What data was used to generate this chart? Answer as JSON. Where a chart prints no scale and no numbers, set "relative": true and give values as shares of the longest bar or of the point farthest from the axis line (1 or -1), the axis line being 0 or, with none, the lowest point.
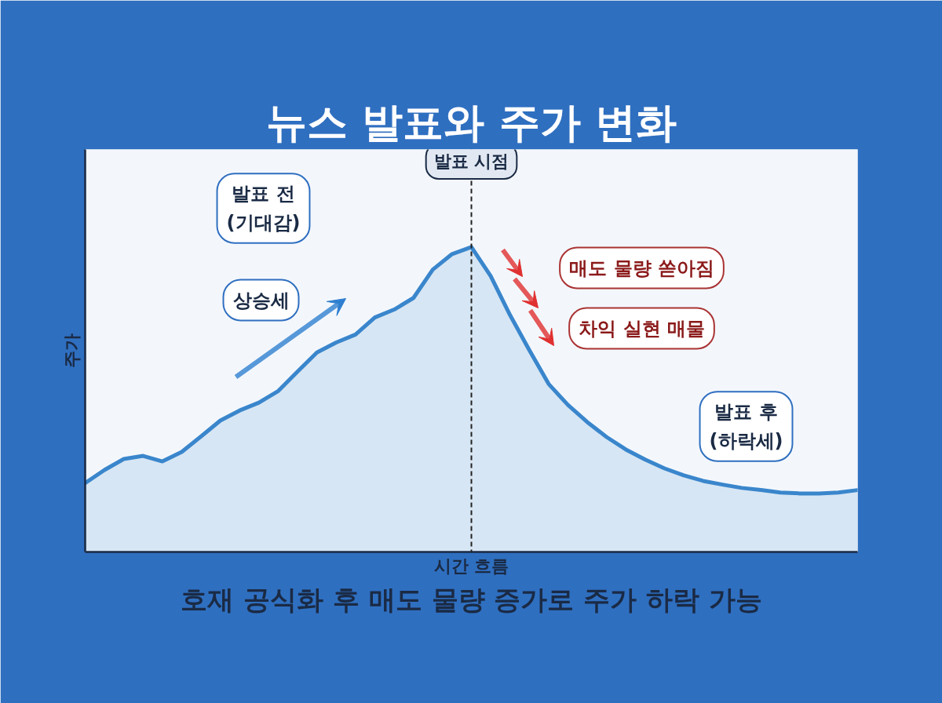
{
  "chart_data": {
    "type": "area",
    "title": "뉴스 발표와 주가 변화",
    "xlabel": "시간 흐름",
    "ylabel": "주가",
    "relative": true,
    "categories": [
      null,
      null,
      null,
      null,
      null,
      null,
      null,
      null,
      null,
      null,
      null,
      null,
      null,
      null,
      null,
      null,
      null,
      null,
      null,
      null,
      null,
      null,
      null,
      null,
      null,
      null,
      null,
      null,
      null,
      null,
      null,
      null,
      null,
      null,
      null,
      null,
      null,
      null,
      null,
      null,
      null
    ],
    "series": [
      {
        "color": "#3a86cc",
        "values": [
          0.226,
          0.269,
          0.305,
          0.315,
          0.297,
          0.328,
          0.379,
          0.431,
          0.464,
          0.49,
          0.528,
          0.592,
          0.654,
          0.687,
          0.713,
          0.769,
          0.795,
          0.833,
          0.926,
          0.977,
          1.0,
          0.905,
          0.777,
          0.662,
          0.551,
          0.482,
          0.426,
          0.377,
          0.336,
          0.303,
          0.274,
          0.251,
          0.233,
          0.221,
          0.21,
          0.203,
          0.195,
          0.192,
          0.192,
          0.195,
          0.203
        ]
      }
    ],
    "ref_lines": [
      {
        "axis": "x",
        "label": "발표 시점",
        "line_style": "dashed",
        "color": "#222222"
      }
    ],
    "annotations": [
      "발표 전\n(기대감)",
      "상승세",
      "매도 물량 쏟아짐",
      "차익 실현 매물",
      "발표 후\n(하락세)",
      "호재 공식화 후 매도 물량 증가로 주가 하락 가능"
    ]
  }
}
